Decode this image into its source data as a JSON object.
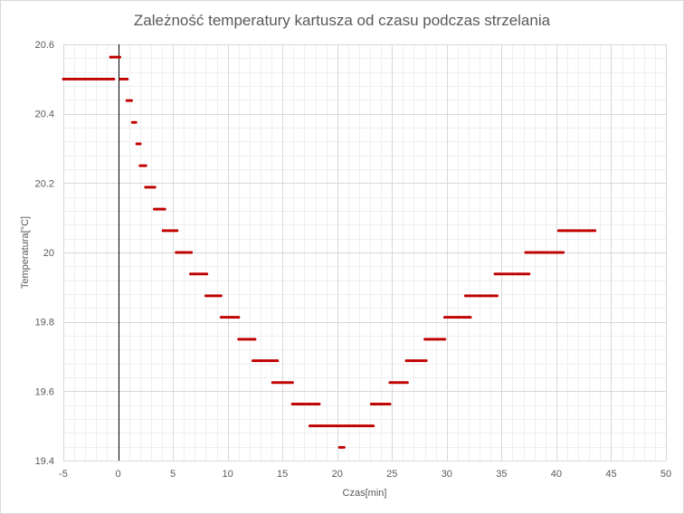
{
  "chart_data": {
    "type": "scatter",
    "title": "Zależność temperatury kartusza od czasu podczas strzelania",
    "xlabel": "Czas[min]",
    "ylabel": "Temperatura[°C]",
    "xlim": [
      -5,
      50
    ],
    "ylim": [
      19.4,
      20.6
    ],
    "x_ticks": [
      -5,
      0,
      5,
      10,
      15,
      20,
      25,
      30,
      35,
      40,
      45,
      50
    ],
    "x_tick_labels": [
      "-5",
      "0",
      "5",
      "10",
      "15",
      "20",
      "25",
      "30",
      "35",
      "40",
      "45",
      "50"
    ],
    "y_ticks": [
      19.4,
      19.6,
      19.8,
      20.0,
      20.2,
      20.4,
      20.6
    ],
    "y_tick_labels": [
      "19.4",
      "19.6",
      "19.8",
      "20",
      "20.2",
      "20.4",
      "20.6"
    ],
    "grid": true,
    "minor_grid": true,
    "legend": "none",
    "marker_color": "#C00000",
    "series": [
      {
        "segments": [
          {
            "x_start": -5.0,
            "x_end": -0.3,
            "y": 20.5
          },
          {
            "x_start": -0.7,
            "x_end": 0.2,
            "y": 20.563
          },
          {
            "x_start": 0.2,
            "x_end": 0.9,
            "y": 20.5
          },
          {
            "x_start": 0.8,
            "x_end": 1.3,
            "y": 20.438
          },
          {
            "x_start": 1.3,
            "x_end": 1.7,
            "y": 20.375
          },
          {
            "x_start": 1.7,
            "x_end": 2.1,
            "y": 20.313
          },
          {
            "x_start": 2.0,
            "x_end": 2.6,
            "y": 20.25
          },
          {
            "x_start": 2.5,
            "x_end": 3.4,
            "y": 20.188
          },
          {
            "x_start": 3.3,
            "x_end": 4.3,
            "y": 20.125
          },
          {
            "x_start": 4.1,
            "x_end": 5.4,
            "y": 20.063
          },
          {
            "x_start": 5.3,
            "x_end": 6.8,
            "y": 20.0
          },
          {
            "x_start": 6.6,
            "x_end": 8.2,
            "y": 19.938
          },
          {
            "x_start": 8.0,
            "x_end": 9.5,
            "y": 19.875
          },
          {
            "x_start": 9.4,
            "x_end": 11.1,
            "y": 19.813
          },
          {
            "x_start": 11.0,
            "x_end": 12.6,
            "y": 19.75
          },
          {
            "x_start": 12.3,
            "x_end": 14.6,
            "y": 19.688
          },
          {
            "x_start": 14.1,
            "x_end": 16.0,
            "y": 19.625
          },
          {
            "x_start": 15.9,
            "x_end": 18.4,
            "y": 19.563
          },
          {
            "x_start": 17.5,
            "x_end": 23.3,
            "y": 19.5
          },
          {
            "x_start": 20.2,
            "x_end": 20.7,
            "y": 19.438
          },
          {
            "x_start": 23.1,
            "x_end": 24.9,
            "y": 19.563
          },
          {
            "x_start": 24.8,
            "x_end": 26.5,
            "y": 19.625
          },
          {
            "x_start": 26.3,
            "x_end": 28.2,
            "y": 19.688
          },
          {
            "x_start": 28.0,
            "x_end": 29.9,
            "y": 19.75
          },
          {
            "x_start": 29.8,
            "x_end": 32.2,
            "y": 19.813
          },
          {
            "x_start": 31.7,
            "x_end": 34.6,
            "y": 19.875
          },
          {
            "x_start": 34.4,
            "x_end": 37.6,
            "y": 19.938
          },
          {
            "x_start": 37.2,
            "x_end": 40.7,
            "y": 20.0
          },
          {
            "x_start": 40.2,
            "x_end": 43.6,
            "y": 20.063
          }
        ]
      }
    ]
  }
}
